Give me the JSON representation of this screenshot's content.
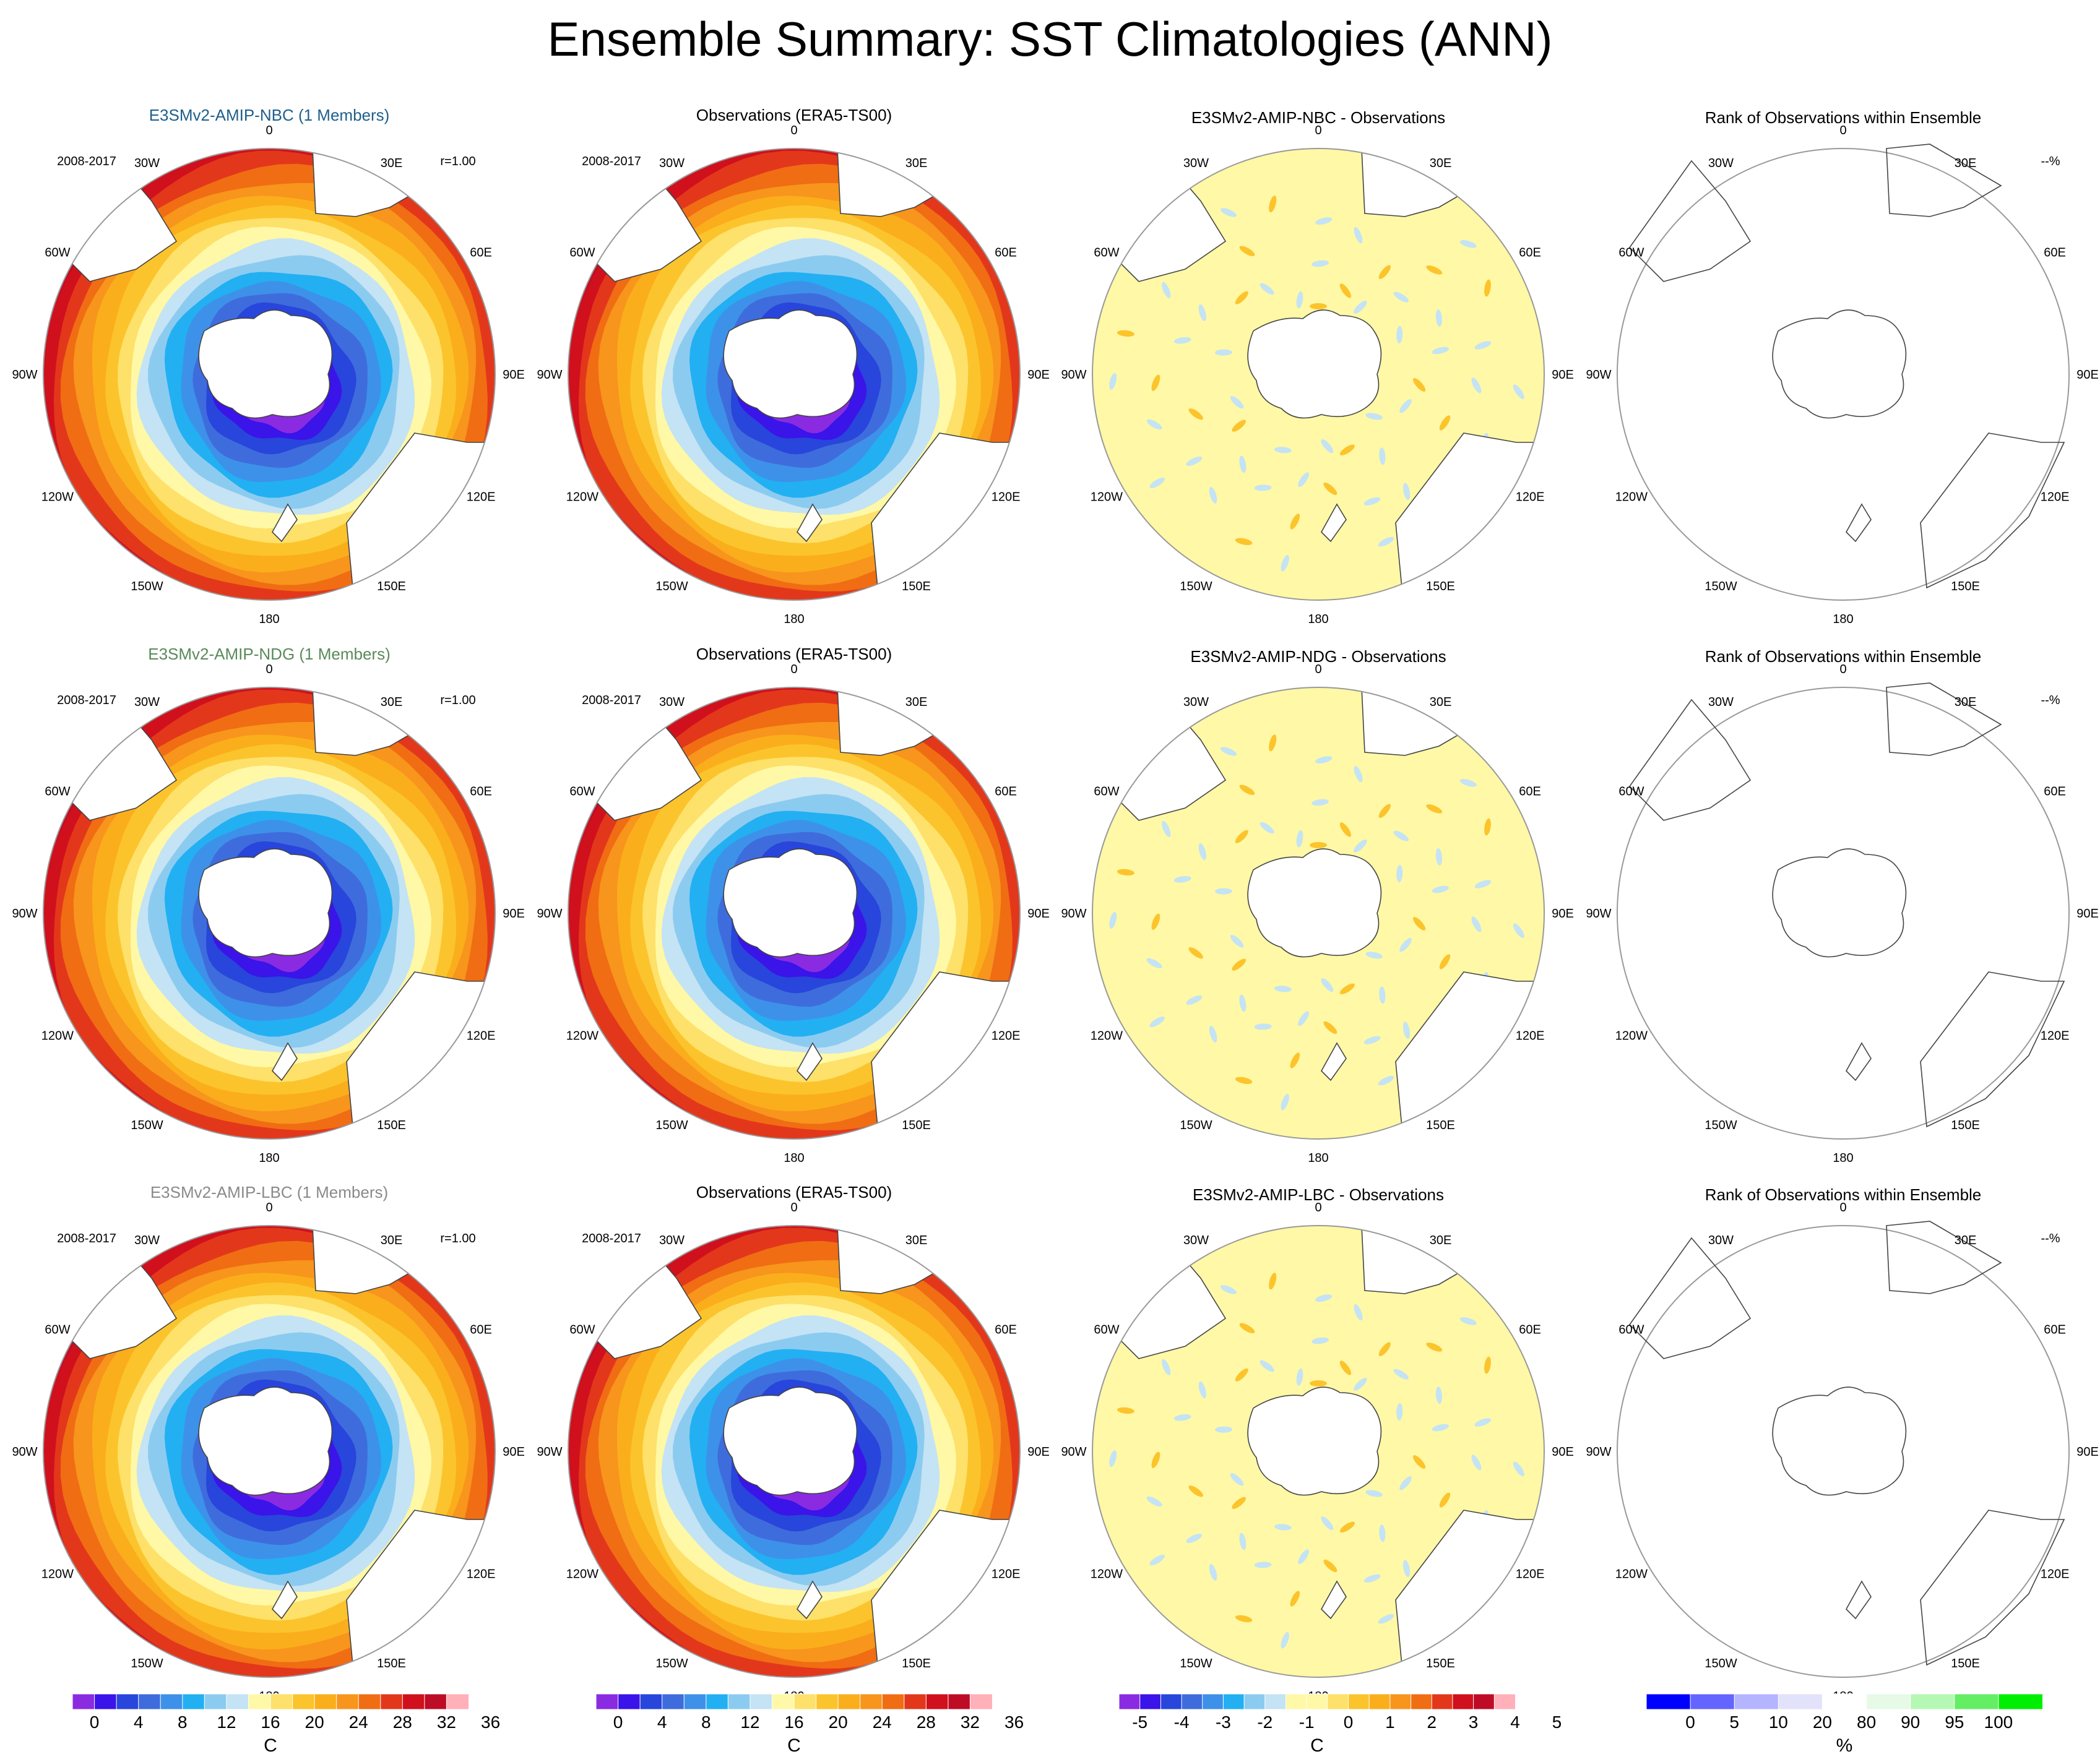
{
  "title": "Ensemble Summary: SST Climatologies (ANN)",
  "lon_labels": [
    "0",
    "30E",
    "60E",
    "90E",
    "120E",
    "150E",
    "180",
    "150W",
    "120W",
    "90W",
    "60W",
    "30W"
  ],
  "palettes": {
    "sst": [
      "#8a2be2",
      "#3a14e8",
      "#2845dc",
      "#3f6cdc",
      "#3e91e9",
      "#22b0f2",
      "#8ccbf0",
      "#c4e3f4",
      "#fff8a6",
      "#fde16a",
      "#fcc42c",
      "#fbae1c",
      "#f8951c",
      "#f06d14",
      "#e3371b",
      "#d0101c",
      "#bf0c26",
      "#ffb0b8"
    ],
    "diff": [
      "#8a2be2",
      "#3a14e8",
      "#2845dc",
      "#3f6cdc",
      "#3e91e9",
      "#22b0f2",
      "#8ccbf0",
      "#c4e3f4",
      "#fff8a6",
      "#fff8a6",
      "#fde16a",
      "#fcc42c",
      "#fbae1c",
      "#f8951c",
      "#f06d14",
      "#e3371b",
      "#d0101c",
      "#bf0c26",
      "#ffb0b8"
    ],
    "rank": [
      "#0000ff",
      "#6464ff",
      "#b4b4ff",
      "#e2e2fa",
      "#ffffff",
      "#e6fae6",
      "#b4f8b4",
      "#64ee64",
      "#00ee00"
    ]
  },
  "colorbars": [
    {
      "unit": "C",
      "labels": [
        "0",
        "4",
        "8",
        "12",
        "16",
        "20",
        "24",
        "28",
        "32",
        "36"
      ],
      "palette": "sst"
    },
    {
      "unit": "C",
      "labels": [
        "0",
        "4",
        "8",
        "12",
        "16",
        "20",
        "24",
        "28",
        "32",
        "36"
      ],
      "palette": "sst"
    },
    {
      "unit": "C",
      "labels": [
        "-5",
        "-4",
        "-3",
        "-2",
        "-1",
        "0",
        "1",
        "2",
        "3",
        "4",
        "5"
      ],
      "palette": "diff"
    },
    {
      "unit": "%",
      "labels": [
        "0",
        "5",
        "10",
        "20",
        "80",
        "90",
        "95",
        "100"
      ],
      "palette": "rank"
    }
  ],
  "rows": [
    {
      "model": {
        "label": "E3SMv2-AMIP-NBC (1 Members)",
        "color": "#1f5f8b",
        "period": "2008-2017",
        "corr": "r=1.00"
      },
      "obs": {
        "label": "Observations (ERA5-TS00)",
        "period": "2008-2017"
      },
      "diff": {
        "label": "E3SMv2-AMIP-NBC - Observations"
      },
      "rank": {
        "label": "Rank of Observations within Ensemble",
        "value": "--%"
      }
    },
    {
      "model": {
        "label": "E3SMv2-AMIP-NDG (1 Members)",
        "color": "#5a8a5a",
        "period": "2008-2017",
        "corr": "r=1.00"
      },
      "obs": {
        "label": "Observations (ERA5-TS00)",
        "period": "2008-2017"
      },
      "diff": {
        "label": "E3SMv2-AMIP-NDG - Observations"
      },
      "rank": {
        "label": "Rank of Observations within Ensemble",
        "value": "--%"
      }
    },
    {
      "model": {
        "label": "E3SMv2-AMIP-LBC (1 Members)",
        "color": "#8a8a8a",
        "period": "2008-2017",
        "corr": "r=1.00"
      },
      "obs": {
        "label": "Observations (ERA5-TS00)",
        "period": "2008-2017"
      },
      "diff": {
        "label": "E3SMv2-AMIP-LBC - Observations"
      },
      "rank": {
        "label": "Rank of Observations within Ensemble",
        "value": "--%"
      }
    }
  ],
  "chart_data": {
    "type": "heatmap",
    "title": "Ensemble Summary: SST Climatologies (ANN)",
    "projection": "south polar stereographic",
    "sst_levels_C": [
      0,
      2,
      4,
      6,
      8,
      10,
      12,
      14,
      16,
      18,
      20,
      22,
      24,
      26,
      28,
      30,
      32,
      34,
      36
    ],
    "diff_levels_C": [
      -5,
      -4.5,
      -4,
      -3.5,
      -3,
      -2.5,
      -2,
      -1.5,
      -1,
      -0.5,
      0,
      0.5,
      1,
      1.5,
      2,
      2.5,
      3,
      3.5,
      4,
      4.5,
      5
    ],
    "rank_levels_pct": [
      0,
      5,
      10,
      20,
      80,
      90,
      95,
      100
    ],
    "observed_diff_range_C": [
      -1,
      1
    ]
  }
}
